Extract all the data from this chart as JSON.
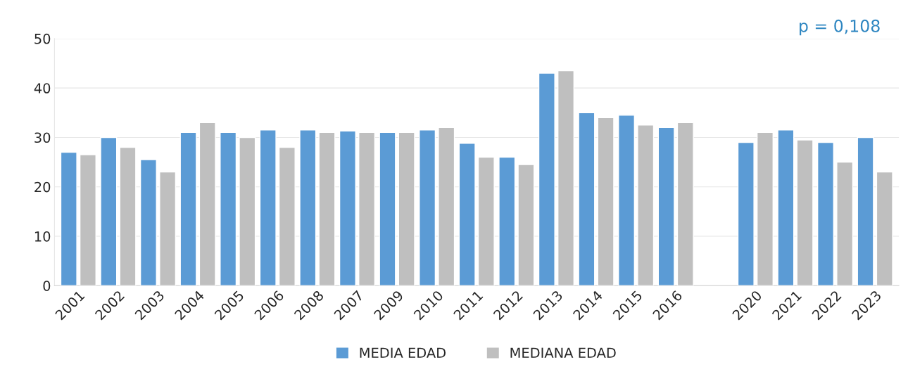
{
  "chart_data": {
    "type": "bar",
    "categories": [
      "2001",
      "2002",
      "2003",
      "2004",
      "2005",
      "2006",
      "2008",
      "2007",
      "2009",
      "2010",
      "2011",
      "2012",
      "2013",
      "2014",
      "2015",
      "2016",
      null,
      "2020",
      "2021",
      "2022",
      "2023"
    ],
    "series": [
      {
        "name": "MEDIA EDAD",
        "color": "#5b9bd5",
        "values": [
          27,
          30,
          25.5,
          31,
          31,
          31.5,
          31.5,
          31.3,
          31,
          31.5,
          28.8,
          26,
          43,
          35,
          34.5,
          32,
          null,
          29,
          31.5,
          29,
          30
        ]
      },
      {
        "name": "MEDIANA EDAD",
        "color": "#bfbfbf",
        "values": [
          26.5,
          28,
          23,
          33,
          30,
          28,
          31,
          31,
          31,
          32,
          26,
          24.5,
          43.5,
          34,
          32.5,
          33,
          null,
          31,
          29.5,
          25,
          23
        ]
      }
    ],
    "ylim": [
      0,
      50
    ],
    "yticks": [
      0,
      10,
      20,
      30,
      40,
      50
    ],
    "grid": "y",
    "legend": "bottom",
    "annotations": [
      "p = 0,108"
    ]
  }
}
